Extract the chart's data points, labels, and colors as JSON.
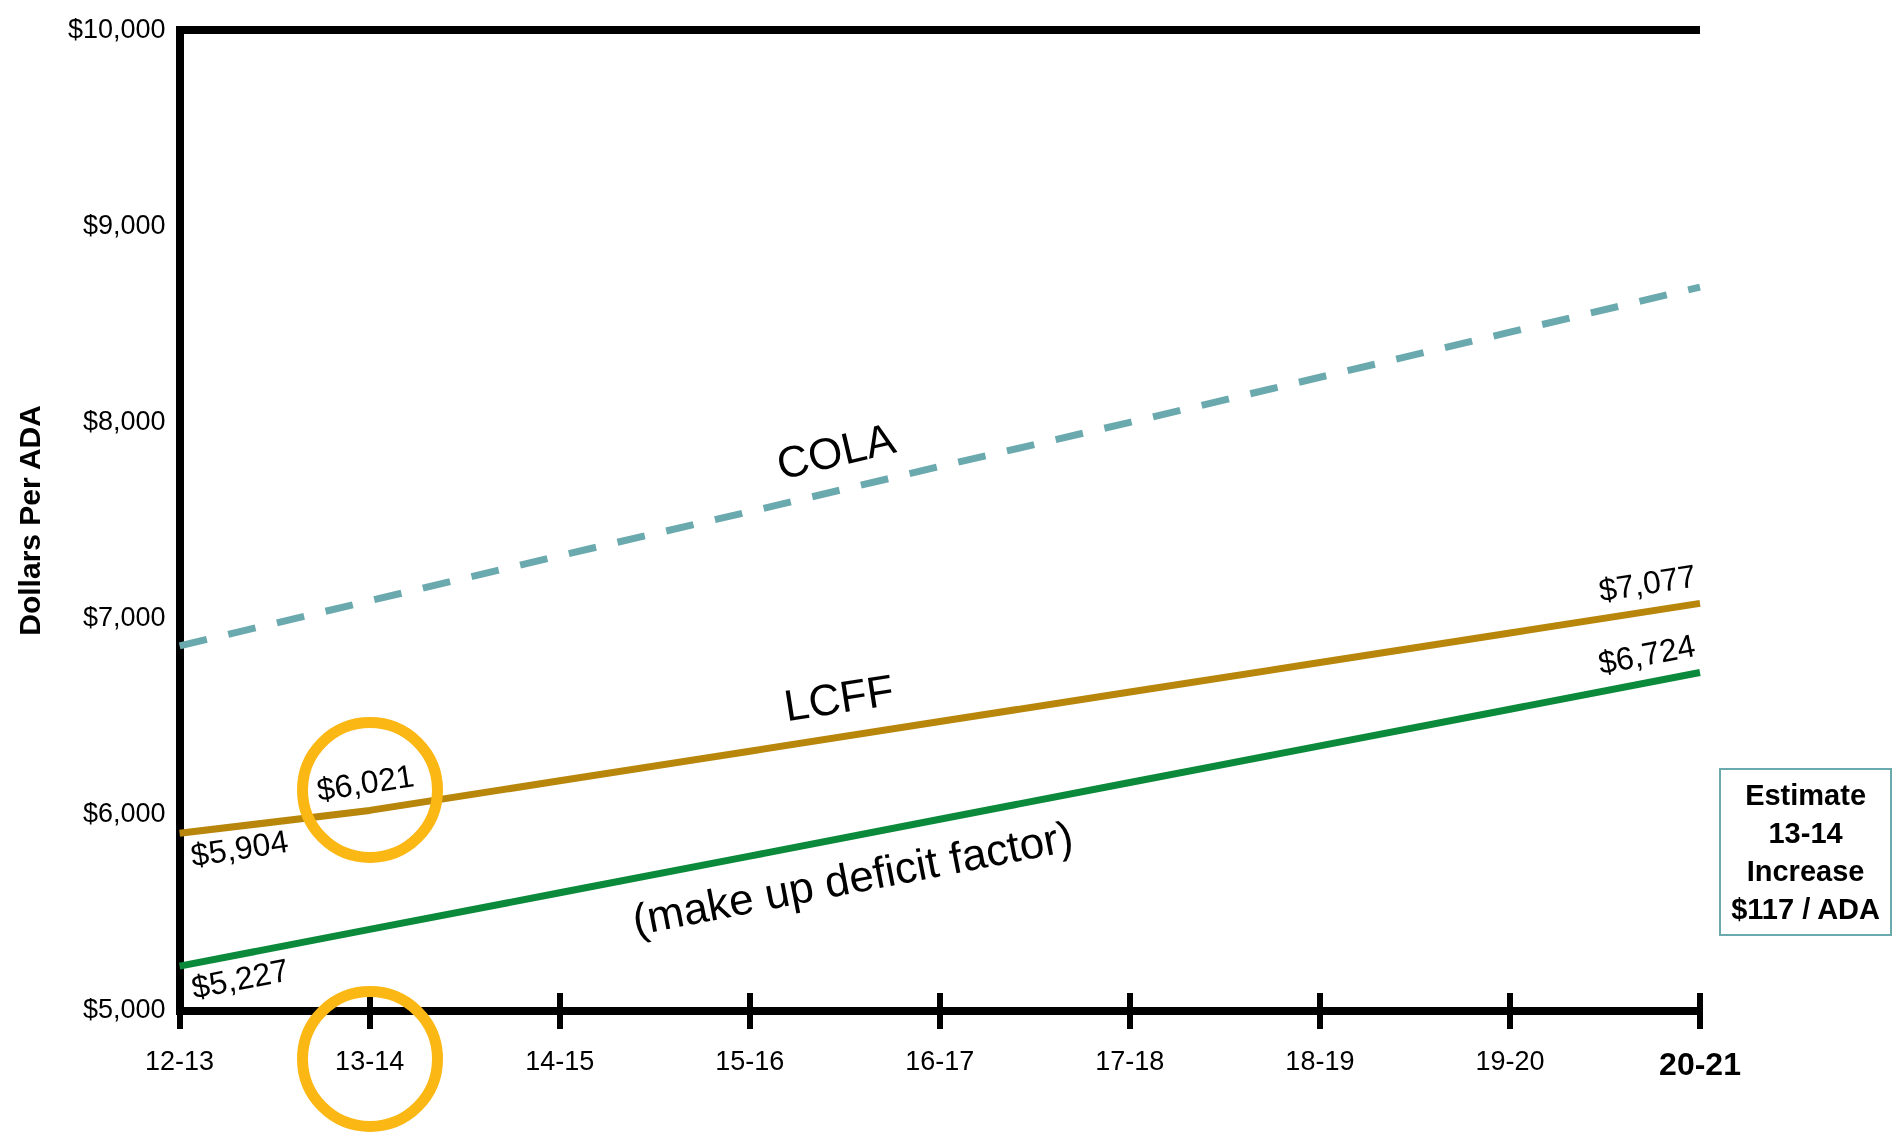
{
  "chart_data": {
    "type": "line",
    "ylabel": "Dollars Per ADA",
    "categories": [
      "12-13",
      "13-14",
      "14-15",
      "15-16",
      "16-17",
      "17-18",
      "18-19",
      "19-20",
      "20-21"
    ],
    "series": [
      {
        "name": "COLA",
        "color": "#6aa9ad",
        "line_style": "dashed",
        "values": [
          6860,
          7090,
          7320,
          7545,
          7775,
          8000,
          8230,
          8460,
          8690
        ]
      },
      {
        "name": "LCFF",
        "color": "#b8860b",
        "line_style": "solid",
        "values": [
          5904,
          6021,
          6172,
          6323,
          6474,
          6625,
          6775,
          6926,
          7077
        ],
        "value_labels": [
          "$5,904",
          "$6,021",
          null,
          null,
          null,
          null,
          null,
          null,
          "$7,077"
        ]
      },
      {
        "name": "(make up deficit factor)",
        "color": "#0a8a3a",
        "line_style": "solid",
        "values": [
          5227,
          5414,
          5601,
          5788,
          5976,
          6163,
          6350,
          6537,
          6724
        ],
        "value_labels": [
          "$5,227",
          null,
          null,
          null,
          null,
          null,
          null,
          null,
          "$6,724"
        ]
      }
    ],
    "ylim": [
      5000,
      10000
    ],
    "yticks": [
      {
        "value": 5000,
        "label": "$5,000"
      },
      {
        "value": 6000,
        "label": "$6,000"
      },
      {
        "value": 7000,
        "label": "$7,000"
      },
      {
        "value": 8000,
        "label": "$8,000"
      },
      {
        "value": 9000,
        "label": "$9,000"
      },
      {
        "value": 10000,
        "label": "$10,000"
      }
    ],
    "grid": false,
    "legend": false,
    "marker": "none",
    "annotations": [
      "Estimate\n13-14\nIncrease\n$117 / ADA"
    ]
  }
}
